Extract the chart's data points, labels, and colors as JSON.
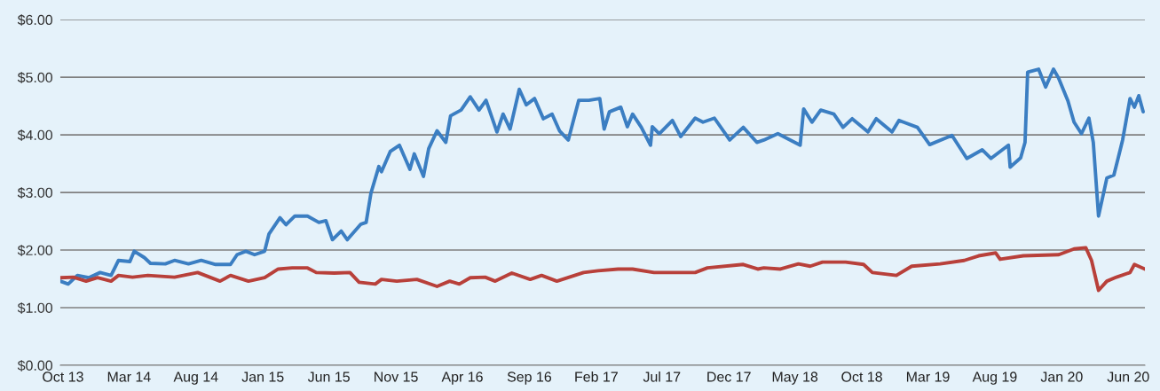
{
  "chart_data": {
    "type": "line",
    "ylim": [
      0,
      6
    ],
    "yticks": [
      {
        "value": 0,
        "label": "$0.00"
      },
      {
        "value": 1,
        "label": "$1.00"
      },
      {
        "value": 2,
        "label": "$2.00"
      },
      {
        "value": 3,
        "label": "$3.00"
      },
      {
        "value": 4,
        "label": "$4.00"
      },
      {
        "value": 5,
        "label": "$5.00"
      },
      {
        "value": 6,
        "label": "$6.00"
      }
    ],
    "xlim": [
      "2013-09-25",
      "2020-07-09"
    ],
    "xticks": [
      {
        "value": "2013-10-01",
        "label": "Oct 13"
      },
      {
        "value": "2014-03-01",
        "label": "Mar 14"
      },
      {
        "value": "2014-08-01",
        "label": "Aug 14"
      },
      {
        "value": "2015-01-01",
        "label": "Jan 15"
      },
      {
        "value": "2015-06-01",
        "label": "Jun 15"
      },
      {
        "value": "2015-11-01",
        "label": "Nov 15"
      },
      {
        "value": "2016-04-01",
        "label": "Apr 16"
      },
      {
        "value": "2016-09-01",
        "label": "Sep 16"
      },
      {
        "value": "2017-02-01",
        "label": "Feb 17"
      },
      {
        "value": "2017-07-01",
        "label": "Jul 17"
      },
      {
        "value": "2017-12-01",
        "label": "Dec 17"
      },
      {
        "value": "2018-05-01",
        "label": "May 18"
      },
      {
        "value": "2018-10-01",
        "label": "Oct 18"
      },
      {
        "value": "2019-03-01",
        "label": "Mar 19"
      },
      {
        "value": "2019-08-01",
        "label": "Aug 19"
      },
      {
        "value": "2020-01-01",
        "label": "Jan 20"
      },
      {
        "value": "2020-06-01",
        "label": "Jun 20"
      }
    ],
    "grid": "y",
    "marker": "none",
    "line_style": "solid",
    "series": [
      {
        "color": "#3b7ec2",
        "x": [
          "2013-09-25",
          "2013-10-13",
          "2013-11-03",
          "2013-11-29",
          "2013-12-25",
          "2014-01-19",
          "2014-02-05",
          "2014-03-03",
          "2014-03-13",
          "2014-04-05",
          "2014-04-19",
          "2014-05-23",
          "2014-06-13",
          "2014-07-15",
          "2014-08-13",
          "2014-09-15",
          "2014-10-19",
          "2014-11-03",
          "2014-11-23",
          "2014-12-13",
          "2015-01-05",
          "2015-01-15",
          "2015-02-09",
          "2015-02-23",
          "2015-03-15",
          "2015-04-13",
          "2015-05-09",
          "2015-05-25",
          "2015-06-09",
          "2015-06-29",
          "2015-07-13",
          "2015-08-13",
          "2015-08-25",
          "2015-09-05",
          "2015-09-23",
          "2015-09-29",
          "2015-10-19",
          "2015-11-09",
          "2015-12-03",
          "2015-12-13",
          "2016-01-03",
          "2016-01-15",
          "2016-02-03",
          "2016-02-23",
          "2016-03-05",
          "2016-03-29",
          "2016-04-19",
          "2016-05-09",
          "2016-05-25",
          "2016-06-19",
          "2016-07-03",
          "2016-07-19",
          "2016-08-09",
          "2016-08-25",
          "2016-09-13",
          "2016-10-03",
          "2016-10-23",
          "2016-11-09",
          "2016-11-29",
          "2016-12-23",
          "2017-01-15",
          "2017-02-09",
          "2017-02-19",
          "2017-03-03",
          "2017-03-29",
          "2017-04-13",
          "2017-04-25",
          "2017-05-15",
          "2017-06-05",
          "2017-06-09",
          "2017-06-25",
          "2017-07-25",
          "2017-08-13",
          "2017-09-15",
          "2017-10-03",
          "2017-10-29",
          "2017-12-03",
          "2018-01-03",
          "2018-02-03",
          "2018-02-19",
          "2018-03-23",
          "2018-05-13",
          "2018-05-21",
          "2018-06-09",
          "2018-06-29",
          "2018-07-29",
          "2018-08-19",
          "2018-09-09",
          "2018-10-15",
          "2018-11-03",
          "2018-12-09",
          "2018-12-25",
          "2019-02-05",
          "2019-03-05",
          "2019-04-25",
          "2019-05-29",
          "2019-07-03",
          "2019-07-23",
          "2019-09-01",
          "2019-09-05",
          "2019-09-29",
          "2019-10-09",
          "2019-10-15",
          "2019-11-09",
          "2019-11-25",
          "2019-12-13",
          "2019-12-25",
          "2020-01-15",
          "2020-01-29",
          "2020-02-15",
          "2020-03-03",
          "2020-03-13",
          "2020-03-25",
          "2020-04-13",
          "2020-04-29",
          "2020-05-09",
          "2020-05-19",
          "2020-06-05",
          "2020-06-15",
          "2020-06-25",
          "2020-07-05"
        ],
        "values": [
          1.46,
          1.41,
          1.56,
          1.52,
          1.61,
          1.56,
          1.82,
          1.8,
          1.98,
          1.87,
          1.77,
          1.76,
          1.82,
          1.76,
          1.82,
          1.75,
          1.75,
          1.92,
          1.98,
          1.92,
          1.98,
          2.28,
          2.56,
          2.44,
          2.59,
          2.59,
          2.48,
          2.51,
          2.18,
          2.33,
          2.18,
          2.45,
          2.48,
          2.99,
          3.45,
          3.36,
          3.71,
          3.82,
          3.4,
          3.67,
          3.28,
          3.76,
          4.07,
          3.87,
          4.33,
          4.43,
          4.66,
          4.43,
          4.6,
          4.05,
          4.36,
          4.1,
          4.79,
          4.52,
          4.63,
          4.28,
          4.36,
          4.07,
          3.91,
          4.6,
          4.6,
          4.63,
          4.1,
          4.4,
          4.48,
          4.14,
          4.36,
          4.13,
          3.82,
          4.14,
          4.02,
          4.25,
          3.97,
          4.29,
          4.22,
          4.29,
          3.91,
          4.13,
          3.87,
          3.91,
          4.02,
          3.82,
          4.45,
          4.22,
          4.43,
          4.36,
          4.13,
          4.28,
          4.05,
          4.28,
          4.05,
          4.25,
          4.13,
          3.83,
          3.99,
          3.59,
          3.74,
          3.59,
          3.82,
          3.44,
          3.6,
          3.87,
          5.09,
          5.14,
          4.83,
          5.14,
          4.98,
          4.59,
          4.22,
          4.02,
          4.29,
          3.87,
          2.59,
          3.25,
          3.3,
          3.6,
          3.91,
          4.63,
          4.48,
          4.68,
          4.4
        ]
      },
      {
        "color": "#b8403a",
        "x": [
          "2013-09-25",
          "2013-10-25",
          "2013-11-23",
          "2013-12-19",
          "2014-01-19",
          "2014-02-05",
          "2014-03-09",
          "2014-04-13",
          "2014-06-13",
          "2014-08-05",
          "2014-09-25",
          "2014-10-19",
          "2014-11-29",
          "2015-01-05",
          "2015-02-05",
          "2015-03-09",
          "2015-04-13",
          "2015-05-03",
          "2015-06-13",
          "2015-07-19",
          "2015-08-09",
          "2015-09-15",
          "2015-09-29",
          "2015-11-03",
          "2015-12-19",
          "2016-02-03",
          "2016-03-03",
          "2016-03-25",
          "2016-04-19",
          "2016-05-23",
          "2016-06-15",
          "2016-07-23",
          "2016-09-03",
          "2016-09-29",
          "2016-11-03",
          "2017-01-03",
          "2017-02-05",
          "2017-03-23",
          "2017-04-25",
          "2017-06-13",
          "2017-09-15",
          "2017-10-13",
          "2018-01-03",
          "2018-02-05",
          "2018-02-19",
          "2018-03-29",
          "2018-05-09",
          "2018-06-05",
          "2018-07-03",
          "2018-08-25",
          "2018-10-05",
          "2018-10-25",
          "2018-12-19",
          "2019-01-23",
          "2019-03-29",
          "2019-05-23",
          "2019-06-25",
          "2019-08-03",
          "2019-08-13",
          "2019-10-05",
          "2019-12-25",
          "2020-01-29",
          "2020-02-25",
          "2020-03-09",
          "2020-03-25",
          "2020-04-13",
          "2020-05-05",
          "2020-06-05",
          "2020-06-15",
          "2020-07-09"
        ],
        "values": [
          1.52,
          1.53,
          1.46,
          1.52,
          1.46,
          1.56,
          1.53,
          1.56,
          1.53,
          1.61,
          1.46,
          1.56,
          1.46,
          1.52,
          1.67,
          1.69,
          1.69,
          1.61,
          1.6,
          1.61,
          1.44,
          1.41,
          1.49,
          1.46,
          1.49,
          1.37,
          1.46,
          1.41,
          1.52,
          1.53,
          1.46,
          1.6,
          1.49,
          1.56,
          1.46,
          1.61,
          1.64,
          1.67,
          1.67,
          1.61,
          1.61,
          1.69,
          1.75,
          1.67,
          1.69,
          1.67,
          1.76,
          1.72,
          1.79,
          1.79,
          1.75,
          1.61,
          1.56,
          1.72,
          1.76,
          1.82,
          1.9,
          1.95,
          1.84,
          1.9,
          1.92,
          2.02,
          2.04,
          1.82,
          1.3,
          1.46,
          1.53,
          1.61,
          1.75,
          1.67
        ]
      }
    ]
  }
}
